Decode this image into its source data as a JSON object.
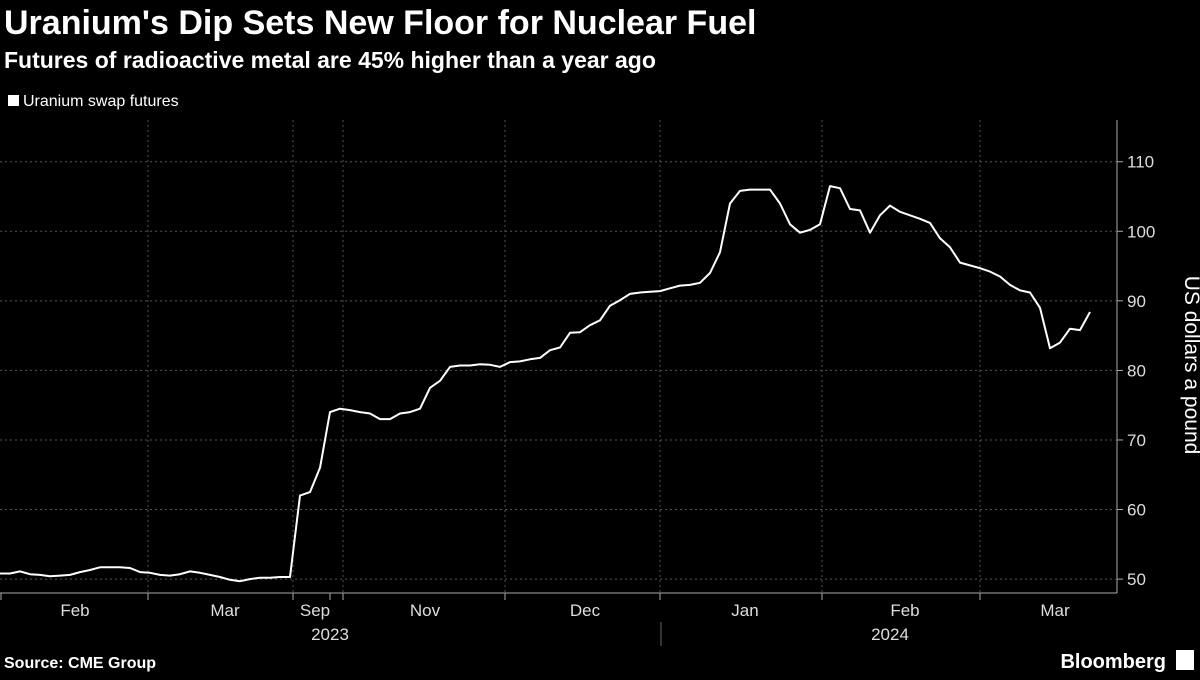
{
  "chart_data": {
    "type": "line",
    "title": "Uranium's Dip Sets New Floor for Nuclear Fuel",
    "subtitle": "Futures of radioactive metal are 45% higher than a year ago",
    "y_axis_label": "US dollars a pound",
    "source": "Source: CME Group",
    "brand": "Bloomberg",
    "x_groups": [
      "2023",
      "2024"
    ],
    "categories": [
      null,
      null,
      null,
      null,
      null,
      null,
      null,
      "Feb",
      null,
      null,
      null,
      null,
      null,
      null,
      null,
      null,
      null,
      null,
      null,
      null,
      null,
      null,
      "Mar",
      null,
      null,
      null,
      null,
      null,
      null,
      null,
      null,
      "Sep",
      null,
      null,
      null,
      null,
      null,
      null,
      null,
      null,
      null,
      null,
      "Nov",
      null,
      null,
      null,
      null,
      null,
      null,
      null,
      null,
      null,
      null,
      null,
      null,
      null,
      null,
      null,
      "Dec",
      null,
      null,
      null,
      null,
      null,
      null,
      null,
      null,
      null,
      null,
      null,
      null,
      null,
      null,
      null,
      "Jan",
      null,
      null,
      null,
      null,
      null,
      null,
      null,
      null,
      null,
      null,
      null,
      null,
      null,
      null,
      null,
      "Feb",
      null,
      null,
      null,
      null,
      null,
      null,
      null,
      null,
      null,
      null,
      null,
      null,
      null,
      null,
      "Mar",
      null,
      null,
      null,
      null
    ],
    "series": [
      {
        "name": "Uranium swap futures",
        "color": "#ffffff",
        "values": [
          50.8,
          50.8,
          51.1,
          50.7,
          50.6,
          50.4,
          50.5,
          50.6,
          51.0,
          51.3,
          51.7,
          51.7,
          51.7,
          51.6,
          51.0,
          50.9,
          50.6,
          50.5,
          50.7,
          51.1,
          50.9,
          50.6,
          50.3,
          49.9,
          49.7,
          50.0,
          50.2,
          50.2,
          50.3,
          50.3,
          62.0,
          62.5,
          66.0,
          74.0,
          74.5,
          74.3,
          74.0,
          73.8,
          73.0,
          73.0,
          73.8,
          74.0,
          74.5,
          77.5,
          78.5,
          80.5,
          80.7,
          80.7,
          80.9,
          80.8,
          80.5,
          81.2,
          81.3,
          81.6,
          81.8,
          82.9,
          83.3,
          85.4,
          85.5,
          86.5,
          87.2,
          89.3,
          90.1,
          91.0,
          91.2,
          91.3,
          91.4,
          91.8,
          92.2,
          92.3,
          92.6,
          94.0,
          97.0,
          104.0,
          105.8,
          106.0,
          106.0,
          106.0,
          104.0,
          101.0,
          99.8,
          100.2,
          101.0,
          106.5,
          106.2,
          103.2,
          103.0,
          99.8,
          102.3,
          103.7,
          102.8,
          102.3,
          101.8,
          101.2,
          99.0,
          97.7,
          95.5,
          95.1,
          94.7,
          94.2,
          93.5,
          92.3,
          91.5,
          91.2,
          89.0,
          83.2,
          84.0,
          86.0,
          85.8,
          88.4
        ]
      }
    ],
    "ylim": [
      48,
      116
    ],
    "yticks": [
      50,
      60,
      70,
      80,
      90,
      100,
      110
    ],
    "grid": true
  }
}
